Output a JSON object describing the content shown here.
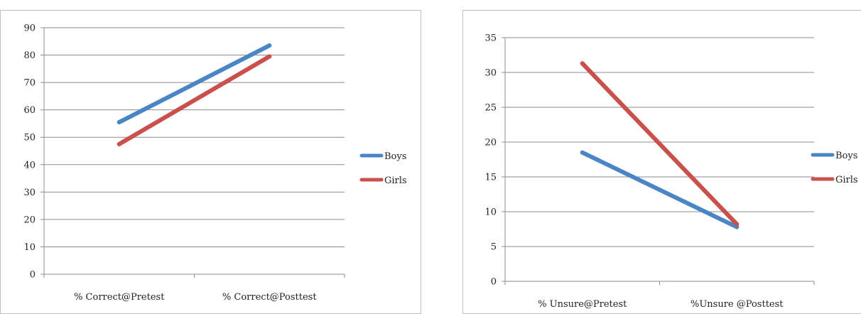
{
  "charts": [
    {
      "type": "line",
      "categories": [
        "% Correct@Pretest",
        "% Correct@Posttest"
      ],
      "ylim": [
        0,
        90
      ],
      "yticks": [
        0,
        10,
        20,
        30,
        40,
        50,
        60,
        70,
        80,
        90
      ],
      "grid": true,
      "legend_position": "right",
      "series": [
        {
          "name": "Boys",
          "values": [
            55.5,
            83.5
          ],
          "color": "#4a86c5"
        },
        {
          "name": "Girls",
          "values": [
            47.5,
            79.5
          ],
          "color": "#c9504b"
        }
      ]
    },
    {
      "type": "line",
      "categories": [
        "% Unsure@Pretest",
        "%Unsure @Posttest"
      ],
      "ylim": [
        0,
        35
      ],
      "yticks": [
        0,
        5,
        10,
        15,
        20,
        25,
        30,
        35
      ],
      "grid": true,
      "legend_position": "right",
      "series": [
        {
          "name": "Boys",
          "values": [
            18.5,
            7.8
          ],
          "color": "#4a86c5"
        },
        {
          "name": "Girls",
          "values": [
            31.3,
            8.2
          ],
          "color": "#c9504b"
        }
      ]
    }
  ]
}
